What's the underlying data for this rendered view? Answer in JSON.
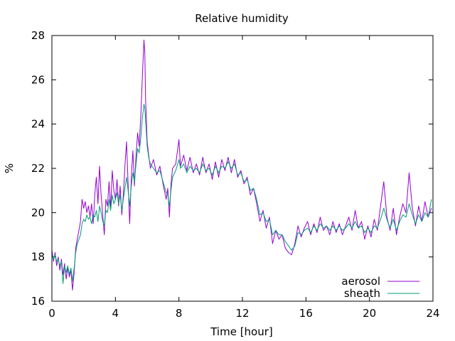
{
  "chart_data": {
    "type": "line",
    "title": "Relative humidity",
    "xlabel": "Time [hour]",
    "ylabel": "%",
    "xlim": [
      0,
      24
    ],
    "ylim": [
      16,
      28
    ],
    "xticks": [
      0,
      4,
      8,
      12,
      16,
      20,
      24
    ],
    "yticks": [
      16,
      18,
      20,
      22,
      24,
      26,
      28
    ],
    "grid": false,
    "legend_position": "bottom-right",
    "series": [
      {
        "name": "aerosol",
        "color": "#9400d3",
        "points": [
          [
            0.0,
            18.3
          ],
          [
            0.1,
            17.8
          ],
          [
            0.2,
            18.2
          ],
          [
            0.3,
            17.6
          ],
          [
            0.4,
            18.0
          ],
          [
            0.5,
            17.4
          ],
          [
            0.6,
            17.9
          ],
          [
            0.7,
            17.2
          ],
          [
            0.8,
            17.7
          ],
          [
            0.9,
            17.0
          ],
          [
            1.0,
            17.5
          ],
          [
            1.1,
            17.1
          ],
          [
            1.2,
            17.4
          ],
          [
            1.3,
            16.5
          ],
          [
            1.4,
            17.3
          ],
          [
            1.5,
            18.4
          ],
          [
            1.6,
            18.8
          ],
          [
            1.7,
            19.2
          ],
          [
            1.8,
            19.6
          ],
          [
            1.9,
            20.6
          ],
          [
            2.0,
            20.2
          ],
          [
            2.1,
            20.5
          ],
          [
            2.2,
            20.0
          ],
          [
            2.3,
            20.3
          ],
          [
            2.4,
            19.8
          ],
          [
            2.5,
            20.4
          ],
          [
            2.6,
            19.5
          ],
          [
            2.7,
            20.8
          ],
          [
            2.8,
            21.6
          ],
          [
            2.9,
            20.4
          ],
          [
            3.0,
            22.1
          ],
          [
            3.1,
            20.8
          ],
          [
            3.2,
            19.9
          ],
          [
            3.3,
            19.0
          ],
          [
            3.4,
            20.6
          ],
          [
            3.5,
            20.3
          ],
          [
            3.6,
            21.4
          ],
          [
            3.7,
            20.2
          ],
          [
            3.8,
            21.9
          ],
          [
            3.9,
            21.0
          ],
          [
            4.0,
            20.6
          ],
          [
            4.1,
            21.5
          ],
          [
            4.2,
            20.3
          ],
          [
            4.3,
            21.2
          ],
          [
            4.4,
            19.9
          ],
          [
            4.5,
            20.8
          ],
          [
            4.6,
            22.1
          ],
          [
            4.7,
            23.2
          ],
          [
            4.8,
            21.3
          ],
          [
            4.9,
            19.5
          ],
          [
            5.0,
            21.6
          ],
          [
            5.1,
            22.8
          ],
          [
            5.2,
            21.2
          ],
          [
            5.3,
            22.6
          ],
          [
            5.4,
            23.6
          ],
          [
            5.5,
            23.0
          ],
          [
            5.6,
            24.4
          ],
          [
            5.7,
            26.2
          ],
          [
            5.8,
            27.8
          ],
          [
            5.85,
            27.2
          ],
          [
            5.9,
            25.1
          ],
          [
            6.0,
            23.2
          ],
          [
            6.1,
            22.6
          ],
          [
            6.2,
            22.0
          ],
          [
            6.4,
            22.4
          ],
          [
            6.6,
            21.7
          ],
          [
            6.8,
            22.1
          ],
          [
            7.0,
            21.3
          ],
          [
            7.2,
            20.6
          ],
          [
            7.3,
            21.1
          ],
          [
            7.4,
            19.8
          ],
          [
            7.5,
            21.3
          ],
          [
            7.6,
            22.0
          ],
          [
            7.8,
            22.2
          ],
          [
            8.0,
            23.3
          ],
          [
            8.1,
            22.1
          ],
          [
            8.3,
            22.6
          ],
          [
            8.5,
            21.9
          ],
          [
            8.7,
            22.5
          ],
          [
            8.9,
            21.8
          ],
          [
            9.1,
            22.2
          ],
          [
            9.3,
            21.7
          ],
          [
            9.5,
            22.5
          ],
          [
            9.7,
            21.8
          ],
          [
            9.9,
            22.2
          ],
          [
            10.1,
            21.5
          ],
          [
            10.3,
            22.3
          ],
          [
            10.5,
            21.6
          ],
          [
            10.7,
            22.4
          ],
          [
            10.9,
            21.9
          ],
          [
            11.1,
            22.5
          ],
          [
            11.3,
            21.8
          ],
          [
            11.5,
            22.4
          ],
          [
            11.7,
            21.6
          ],
          [
            11.9,
            21.9
          ],
          [
            12.1,
            21.3
          ],
          [
            12.3,
            21.6
          ],
          [
            12.5,
            20.8
          ],
          [
            12.7,
            21.1
          ],
          [
            12.9,
            20.4
          ],
          [
            13.1,
            19.6
          ],
          [
            13.3,
            20.1
          ],
          [
            13.5,
            19.3
          ],
          [
            13.7,
            19.8
          ],
          [
            13.9,
            18.6
          ],
          [
            14.1,
            19.2
          ],
          [
            14.3,
            18.8
          ],
          [
            14.5,
            19.0
          ],
          [
            14.7,
            18.4
          ],
          [
            14.9,
            18.2
          ],
          [
            15.1,
            18.1
          ],
          [
            15.3,
            18.6
          ],
          [
            15.5,
            19.4
          ],
          [
            15.7,
            18.9
          ],
          [
            15.9,
            19.3
          ],
          [
            16.1,
            19.6
          ],
          [
            16.3,
            19.0
          ],
          [
            16.5,
            19.5
          ],
          [
            16.7,
            19.1
          ],
          [
            16.9,
            19.8
          ],
          [
            17.1,
            19.2
          ],
          [
            17.3,
            19.4
          ],
          [
            17.5,
            19.0
          ],
          [
            17.7,
            19.6
          ],
          [
            17.9,
            19.1
          ],
          [
            18.1,
            19.5
          ],
          [
            18.3,
            19.0
          ],
          [
            18.5,
            19.4
          ],
          [
            18.7,
            19.8
          ],
          [
            18.9,
            19.2
          ],
          [
            19.1,
            20.1
          ],
          [
            19.3,
            19.3
          ],
          [
            19.5,
            19.6
          ],
          [
            19.7,
            18.8
          ],
          [
            19.9,
            19.4
          ],
          [
            20.1,
            18.9
          ],
          [
            20.3,
            19.7
          ],
          [
            20.5,
            19.2
          ],
          [
            20.7,
            20.3
          ],
          [
            20.9,
            21.4
          ],
          [
            21.1,
            19.8
          ],
          [
            21.3,
            19.2
          ],
          [
            21.5,
            20.2
          ],
          [
            21.7,
            19.0
          ],
          [
            21.9,
            19.8
          ],
          [
            22.1,
            20.4
          ],
          [
            22.3,
            20.0
          ],
          [
            22.5,
            21.8
          ],
          [
            22.7,
            20.2
          ],
          [
            22.9,
            19.4
          ],
          [
            23.1,
            20.3
          ],
          [
            23.3,
            19.6
          ],
          [
            23.5,
            20.5
          ],
          [
            23.7,
            19.8
          ],
          [
            23.9,
            20.2
          ]
        ]
      },
      {
        "name": "sheath",
        "color": "#009e73",
        "points": [
          [
            0.0,
            18.1
          ],
          [
            0.1,
            17.9
          ],
          [
            0.2,
            18.1
          ],
          [
            0.3,
            17.8
          ],
          [
            0.4,
            17.9
          ],
          [
            0.5,
            17.6
          ],
          [
            0.6,
            17.8
          ],
          [
            0.7,
            16.8
          ],
          [
            0.8,
            17.6
          ],
          [
            0.9,
            17.3
          ],
          [
            1.0,
            17.6
          ],
          [
            1.1,
            17.2
          ],
          [
            1.2,
            17.5
          ],
          [
            1.3,
            16.9
          ],
          [
            1.4,
            17.5
          ],
          [
            1.5,
            18.2
          ],
          [
            1.6,
            18.6
          ],
          [
            1.7,
            18.8
          ],
          [
            1.8,
            19.0
          ],
          [
            1.9,
            19.5
          ],
          [
            2.0,
            19.7
          ],
          [
            2.1,
            19.6
          ],
          [
            2.2,
            19.9
          ],
          [
            2.3,
            19.7
          ],
          [
            2.4,
            19.8
          ],
          [
            2.5,
            19.5
          ],
          [
            2.6,
            19.9
          ],
          [
            2.7,
            19.8
          ],
          [
            2.8,
            20.1
          ],
          [
            2.9,
            19.6
          ],
          [
            3.0,
            20.3
          ],
          [
            3.1,
            20.0
          ],
          [
            3.2,
            19.6
          ],
          [
            3.3,
            19.4
          ],
          [
            3.4,
            20.1
          ],
          [
            3.5,
            20.0
          ],
          [
            3.6,
            20.6
          ],
          [
            3.7,
            20.1
          ],
          [
            3.8,
            20.8
          ],
          [
            3.9,
            20.4
          ],
          [
            4.0,
            20.6
          ],
          [
            4.1,
            20.9
          ],
          [
            4.2,
            20.4
          ],
          [
            4.3,
            20.8
          ],
          [
            4.4,
            20.1
          ],
          [
            4.5,
            20.6
          ],
          [
            4.6,
            21.1
          ],
          [
            4.7,
            21.6
          ],
          [
            4.8,
            21.0
          ],
          [
            4.9,
            20.3
          ],
          [
            5.0,
            21.2
          ],
          [
            5.1,
            21.8
          ],
          [
            5.2,
            21.4
          ],
          [
            5.3,
            22.2
          ],
          [
            5.4,
            22.9
          ],
          [
            5.5,
            22.7
          ],
          [
            5.6,
            23.4
          ],
          [
            5.7,
            24.3
          ],
          [
            5.8,
            24.9
          ],
          [
            5.85,
            24.7
          ],
          [
            5.9,
            24.2
          ],
          [
            6.0,
            23.0
          ],
          [
            6.1,
            22.5
          ],
          [
            6.2,
            22.2
          ],
          [
            6.4,
            22.0
          ],
          [
            6.6,
            21.8
          ],
          [
            6.8,
            21.9
          ],
          [
            7.0,
            21.4
          ],
          [
            7.2,
            20.9
          ],
          [
            7.3,
            20.8
          ],
          [
            7.4,
            20.3
          ],
          [
            7.5,
            21.0
          ],
          [
            7.6,
            21.6
          ],
          [
            7.8,
            21.9
          ],
          [
            8.0,
            22.4
          ],
          [
            8.1,
            22.0
          ],
          [
            8.3,
            22.2
          ],
          [
            8.5,
            21.8
          ],
          [
            8.7,
            22.1
          ],
          [
            8.9,
            21.9
          ],
          [
            9.1,
            22.0
          ],
          [
            9.3,
            21.8
          ],
          [
            9.5,
            22.2
          ],
          [
            9.7,
            21.9
          ],
          [
            9.9,
            22.0
          ],
          [
            10.1,
            21.7
          ],
          [
            10.3,
            22.1
          ],
          [
            10.5,
            21.8
          ],
          [
            10.7,
            22.1
          ],
          [
            10.9,
            22.0
          ],
          [
            11.1,
            22.3
          ],
          [
            11.3,
            22.0
          ],
          [
            11.5,
            22.2
          ],
          [
            11.7,
            21.7
          ],
          [
            11.9,
            21.8
          ],
          [
            12.1,
            21.4
          ],
          [
            12.3,
            21.5
          ],
          [
            12.5,
            21.0
          ],
          [
            12.7,
            21.1
          ],
          [
            12.9,
            20.6
          ],
          [
            13.1,
            19.9
          ],
          [
            13.3,
            20.0
          ],
          [
            13.5,
            19.6
          ],
          [
            13.7,
            19.7
          ],
          [
            13.9,
            19.0
          ],
          [
            14.1,
            19.2
          ],
          [
            14.3,
            19.0
          ],
          [
            14.5,
            19.0
          ],
          [
            14.7,
            18.7
          ],
          [
            14.9,
            18.5
          ],
          [
            15.1,
            18.3
          ],
          [
            15.3,
            18.5
          ],
          [
            15.5,
            19.1
          ],
          [
            15.7,
            19.0
          ],
          [
            15.9,
            19.2
          ],
          [
            16.1,
            19.3
          ],
          [
            16.3,
            19.1
          ],
          [
            16.5,
            19.4
          ],
          [
            16.7,
            19.2
          ],
          [
            16.9,
            19.5
          ],
          [
            17.1,
            19.3
          ],
          [
            17.3,
            19.4
          ],
          [
            17.5,
            19.2
          ],
          [
            17.7,
            19.4
          ],
          [
            17.9,
            19.2
          ],
          [
            18.1,
            19.4
          ],
          [
            18.3,
            19.2
          ],
          [
            18.5,
            19.3
          ],
          [
            18.7,
            19.5
          ],
          [
            18.9,
            19.3
          ],
          [
            19.1,
            19.6
          ],
          [
            19.3,
            19.3
          ],
          [
            19.5,
            19.4
          ],
          [
            19.7,
            19.1
          ],
          [
            19.9,
            19.3
          ],
          [
            20.1,
            19.1
          ],
          [
            20.3,
            19.4
          ],
          [
            20.5,
            19.3
          ],
          [
            20.7,
            19.7
          ],
          [
            20.9,
            20.2
          ],
          [
            21.1,
            19.7
          ],
          [
            21.3,
            19.3
          ],
          [
            21.5,
            19.7
          ],
          [
            21.7,
            19.2
          ],
          [
            21.9,
            19.6
          ],
          [
            22.1,
            19.9
          ],
          [
            22.3,
            19.8
          ],
          [
            22.5,
            20.4
          ],
          [
            22.7,
            19.9
          ],
          [
            22.9,
            19.5
          ],
          [
            23.1,
            19.9
          ],
          [
            23.3,
            19.6
          ],
          [
            23.5,
            20.0
          ],
          [
            23.7,
            19.8
          ],
          [
            23.9,
            20.6
          ]
        ]
      }
    ]
  }
}
